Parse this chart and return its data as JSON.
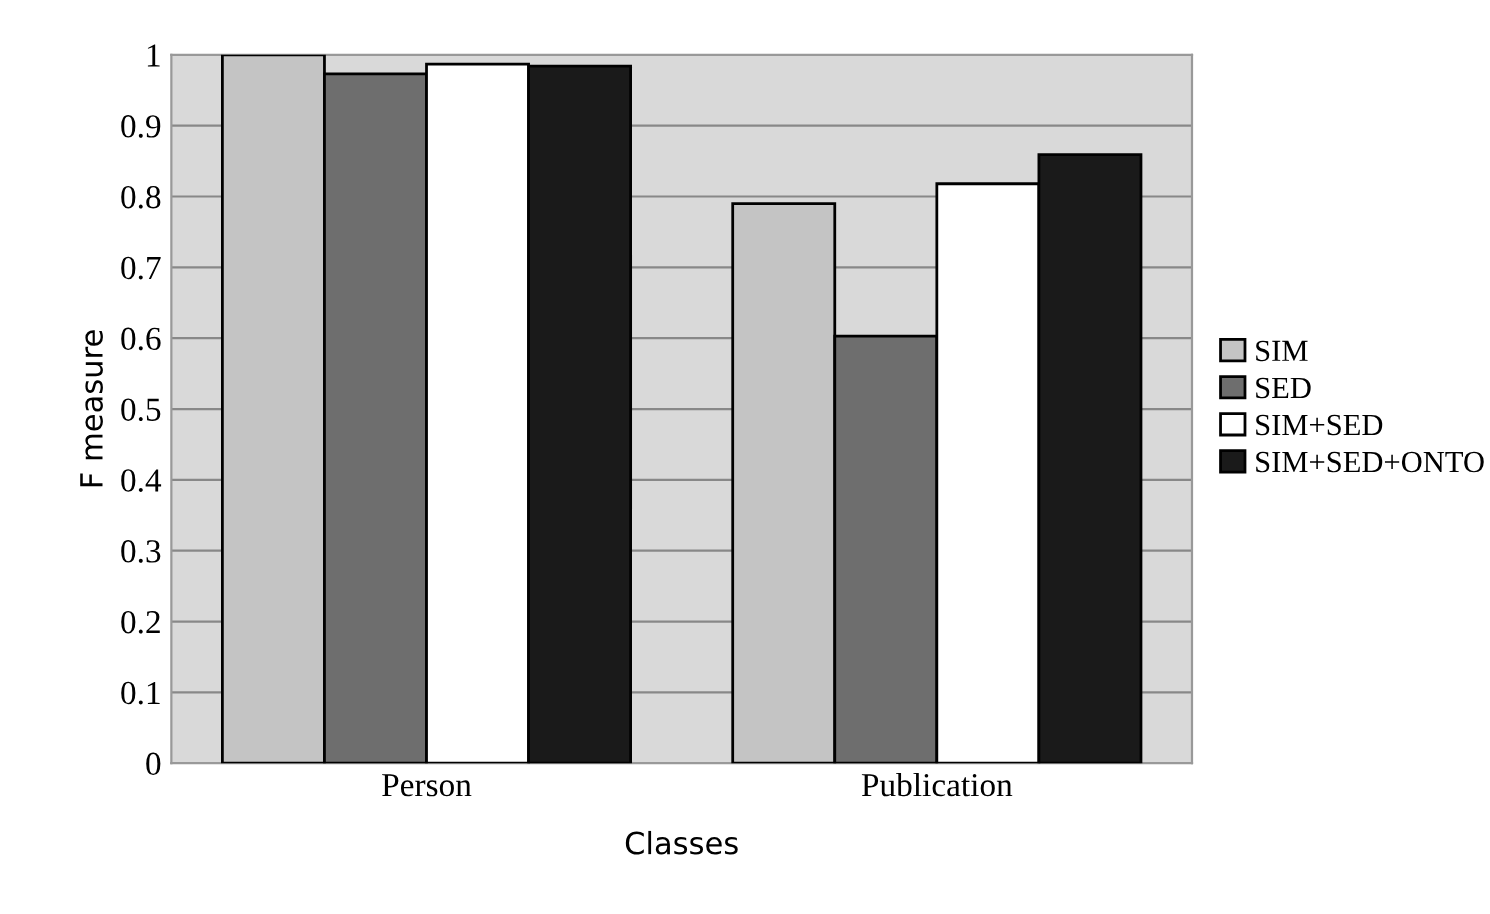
{
  "chart_data": {
    "type": "bar",
    "xlabel": "Classes",
    "ylabel": "F measure",
    "categories": [
      "Person",
      "Publication"
    ],
    "series": [
      {
        "name": "SIM",
        "color": "#c4c4c4",
        "values": [
          1.0,
          0.79
        ]
      },
      {
        "name": "SED",
        "color": "#6e6e6e",
        "values": [
          0.973,
          0.603
        ]
      },
      {
        "name": "SIM+SED",
        "color": "#ffffff",
        "values": [
          0.987,
          0.818
        ]
      },
      {
        "name": "SIM+SED+ONTO",
        "color": "#1a1a1a",
        "values": [
          0.984,
          0.859
        ]
      }
    ],
    "ylim": [
      0,
      1
    ],
    "yticks": [
      0,
      0.1,
      0.2,
      0.3,
      0.4,
      0.5,
      0.6,
      0.7,
      0.8,
      0.9,
      1
    ],
    "grid": "y",
    "legend": "right"
  }
}
